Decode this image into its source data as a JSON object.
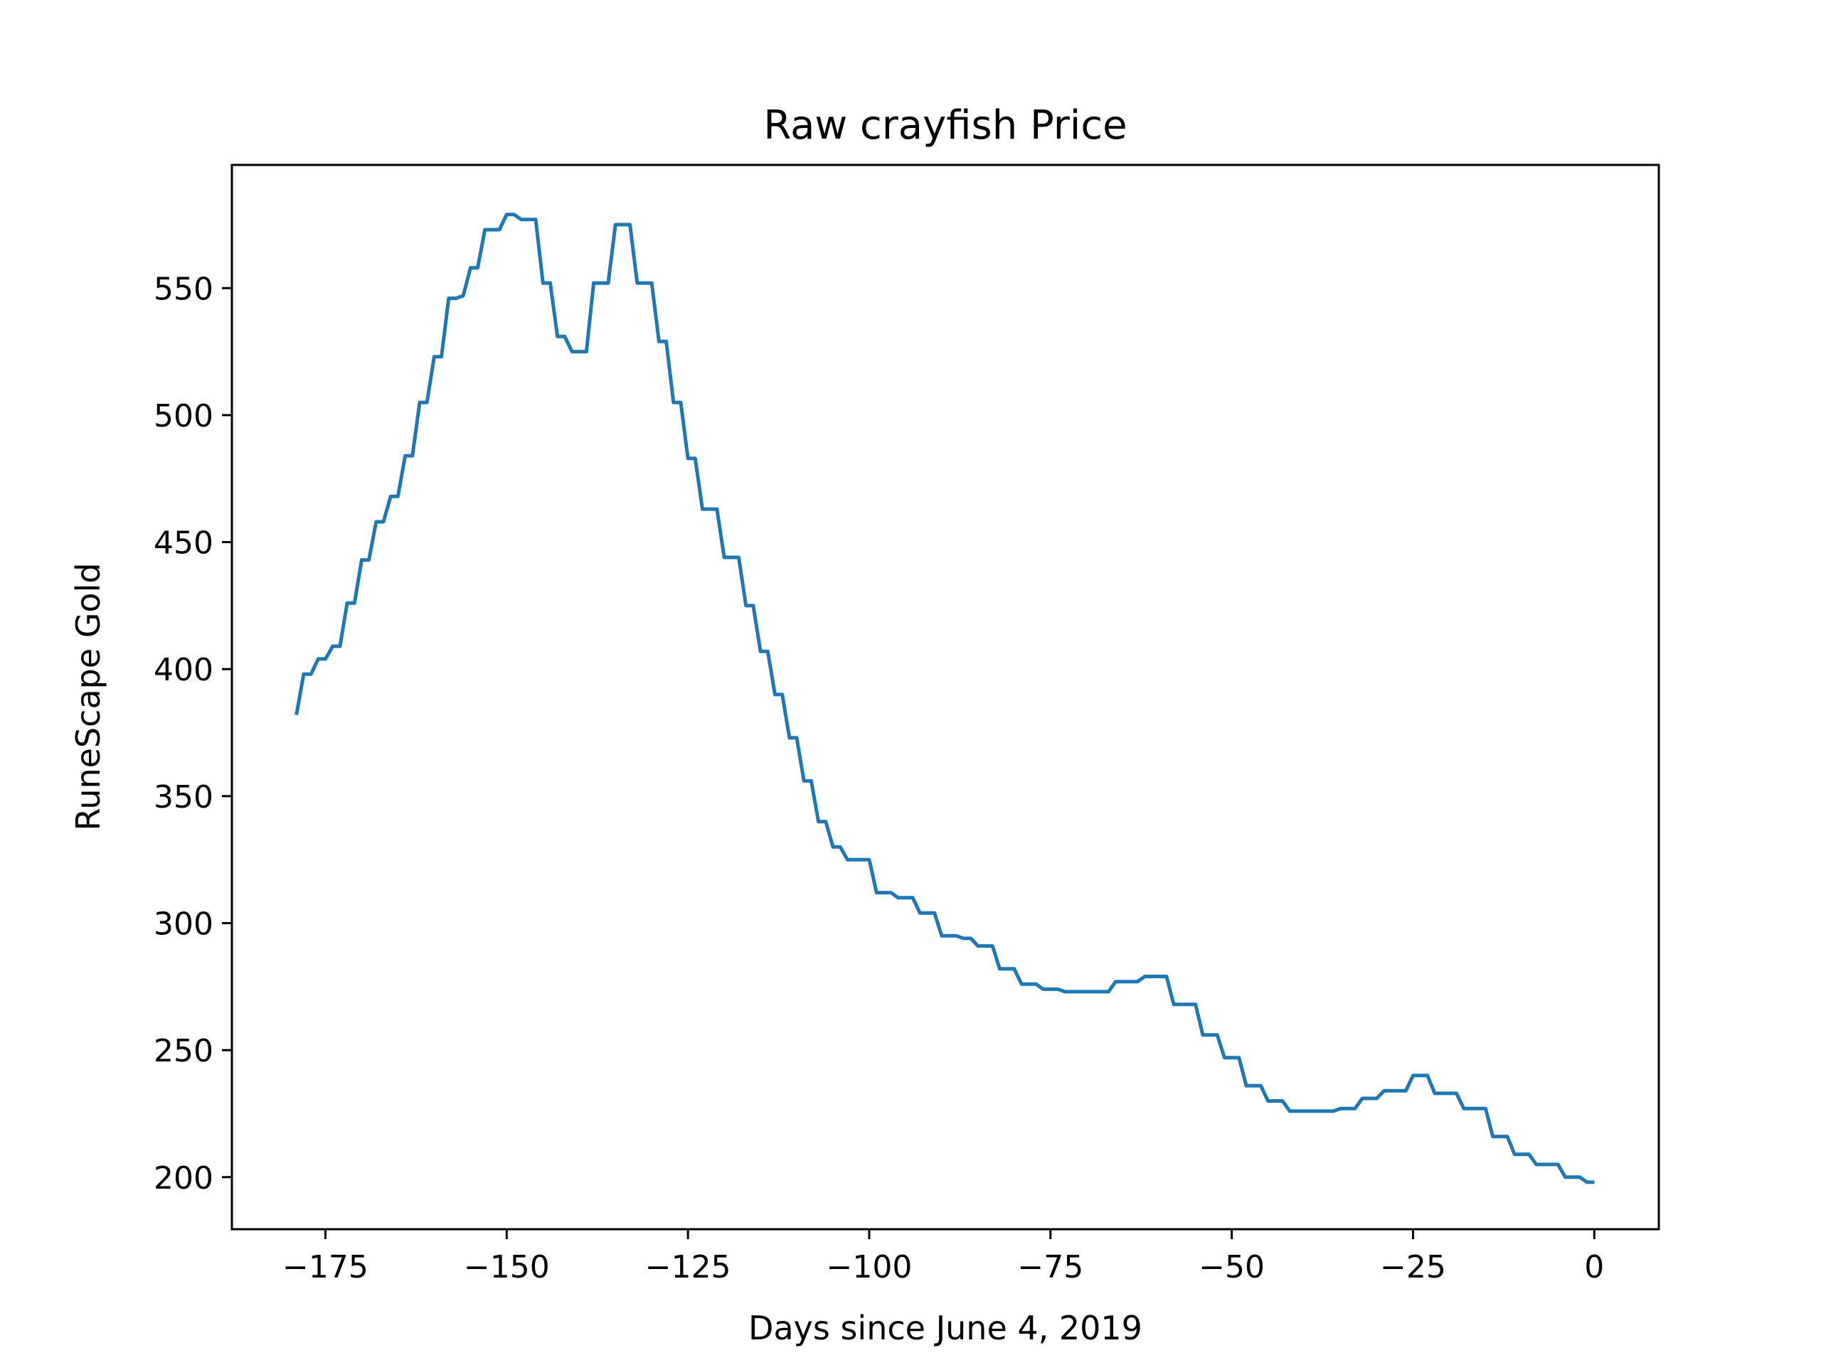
{
  "chart_data": {
    "type": "line",
    "title": "Raw crayfish Price",
    "xlabel": "Days since June 4, 2019",
    "ylabel": "RuneScape Gold",
    "xlim": [
      -187.9,
      8.9
    ],
    "ylim": [
      179.5,
      598.5
    ],
    "xticks": [
      -175,
      -150,
      -125,
      -100,
      -75,
      -50,
      -25,
      0
    ],
    "xtick_labels": [
      "−175",
      "−150",
      "−125",
      "−100",
      "−75",
      "−50",
      "−25",
      "0"
    ],
    "yticks": [
      200,
      250,
      300,
      350,
      400,
      450,
      500,
      550
    ],
    "ytick_labels": [
      "200",
      "250",
      "300",
      "350",
      "400",
      "450",
      "500",
      "550"
    ],
    "grid": false,
    "line_color": "#1f77b4",
    "series": [
      {
        "x": [
          -179,
          -178,
          -177,
          -176,
          -175,
          -174,
          -173,
          -172,
          -171,
          -170,
          -169,
          -168,
          -167,
          -166,
          -165,
          -164,
          -163,
          -162,
          -161,
          -160,
          -159,
          -158,
          -157,
          -156,
          -155,
          -154,
          -153,
          -152,
          -151,
          -150,
          -149,
          -148,
          -147,
          -146,
          -145,
          -144,
          -143,
          -142,
          -141,
          -140,
          -139,
          -138,
          -137,
          -136,
          -135,
          -134,
          -133,
          -132,
          -131,
          -130,
          -129,
          -128,
          -127,
          -126,
          -125,
          -124,
          -123,
          -122,
          -121,
          -120,
          -119,
          -118,
          -117,
          -116,
          -115,
          -114,
          -113,
          -112,
          -111,
          -110,
          -109,
          -108,
          -107,
          -106,
          -105,
          -104,
          -103,
          -102,
          -101,
          -100,
          -99,
          -98,
          -97,
          -96,
          -95,
          -94,
          -93,
          -92,
          -91,
          -90,
          -89,
          -88,
          -87,
          -86,
          -85,
          -84,
          -83,
          -82,
          -81,
          -80,
          -79,
          -78,
          -77,
          -76,
          -75,
          -74,
          -73,
          -72,
          -71,
          -70,
          -69,
          -68,
          -67,
          -66,
          -65,
          -64,
          -63,
          -62,
          -61,
          -60,
          -59,
          -58,
          -57,
          -56,
          -55,
          -54,
          -53,
          -52,
          -51,
          -50,
          -49,
          -48,
          -47,
          -46,
          -45,
          -44,
          -43,
          -42,
          -41,
          -40,
          -39,
          -38,
          -37,
          -36,
          -35,
          -34,
          -33,
          -32,
          -31,
          -30,
          -29,
          -28,
          -27,
          -26,
          -25,
          -24,
          -23,
          -22,
          -21,
          -20,
          -19,
          -18,
          -17,
          -16,
          -15,
          -14,
          -13,
          -12,
          -11,
          -10,
          -9,
          -8,
          -7,
          -6,
          -5,
          -4,
          -3,
          -2,
          -1,
          0
        ],
        "y": [
          382,
          398,
          398,
          404,
          404,
          409,
          409,
          426,
          426,
          443,
          443,
          458,
          458,
          468,
          468,
          484,
          484,
          505,
          505,
          523,
          523,
          546,
          546,
          547,
          558,
          558,
          573,
          573,
          573,
          579,
          579,
          577,
          577,
          577,
          552,
          552,
          531,
          531,
          525,
          525,
          525,
          552,
          552,
          552,
          575,
          575,
          575,
          552,
          552,
          552,
          529,
          529,
          505,
          505,
          483,
          483,
          463,
          463,
          463,
          444,
          444,
          444,
          425,
          425,
          407,
          407,
          390,
          390,
          373,
          373,
          356,
          356,
          340,
          340,
          330,
          330,
          325,
          325,
          325,
          325,
          312,
          312,
          312,
          310,
          310,
          310,
          304,
          304,
          304,
          295,
          295,
          295,
          294,
          294,
          291,
          291,
          291,
          282,
          282,
          282,
          276,
          276,
          276,
          274,
          274,
          274,
          273,
          273,
          273,
          273,
          273,
          273,
          273,
          277,
          277,
          277,
          277,
          279,
          279,
          279,
          279,
          268,
          268,
          268,
          268,
          256,
          256,
          256,
          247,
          247,
          247,
          236,
          236,
          236,
          230,
          230,
          230,
          226,
          226,
          226,
          226,
          226,
          226,
          226,
          227,
          227,
          227,
          231,
          231,
          231,
          234,
          234,
          234,
          234,
          240,
          240,
          240,
          233,
          233,
          233,
          233,
          227,
          227,
          227,
          227,
          216,
          216,
          216,
          209,
          209,
          209,
          205,
          205,
          205,
          205,
          200,
          200,
          200,
          198,
          198
        ]
      }
    ]
  }
}
